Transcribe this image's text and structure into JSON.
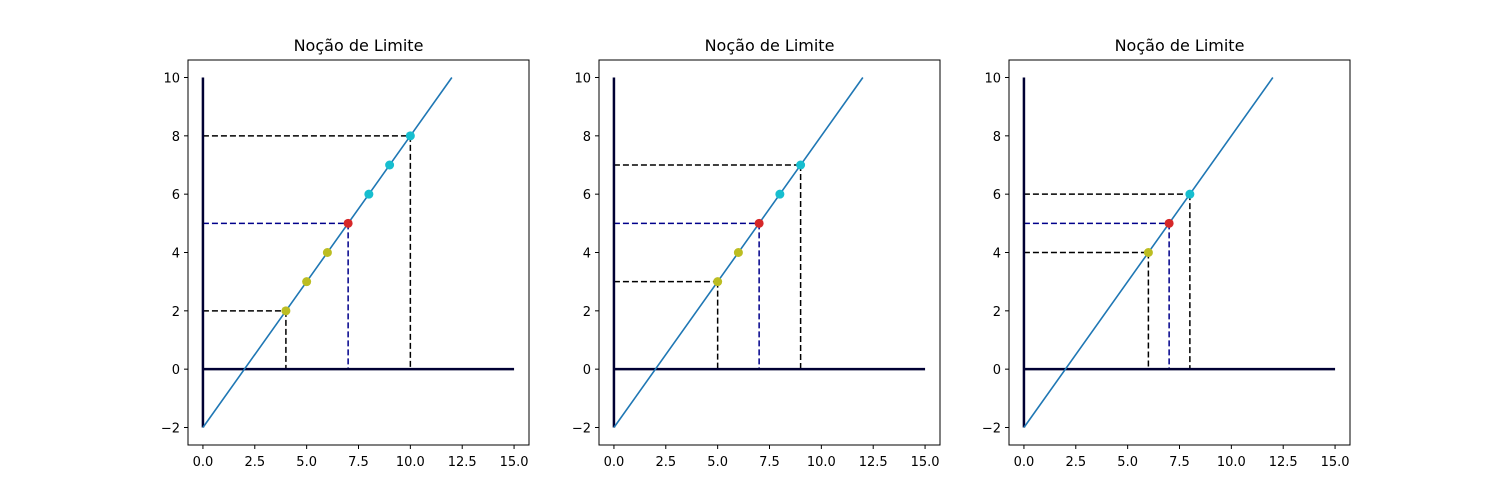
{
  "chart_data": [
    {
      "type": "line",
      "title": "Noção de Limite",
      "xlim": [
        -0.72,
        15.72
      ],
      "ylim": [
        -2.6,
        10.6
      ],
      "xticks": [
        0.0,
        2.5,
        5.0,
        7.5,
        10.0,
        12.5,
        15.0
      ],
      "xtick_labels": [
        "0.0",
        "2.5",
        "5.0",
        "7.5",
        "10.0",
        "12.5",
        "15.0"
      ],
      "yticks": [
        -2,
        0,
        2,
        4,
        6,
        8,
        10
      ],
      "ytick_labels": [
        "−2",
        "0",
        "2",
        "4",
        "6",
        "8",
        "10"
      ],
      "grid": false,
      "axes": {
        "x_axis": {
          "x": [
            0,
            15
          ],
          "y": 0
        },
        "y_axis": {
          "x": 0,
          "y": [
            -2,
            10
          ]
        }
      },
      "function_line": {
        "x": [
          0,
          12
        ],
        "y": [
          -2,
          10
        ],
        "color": "#1f77b4"
      },
      "limit_point": {
        "x": 7,
        "y": 5,
        "color": "#d62728"
      },
      "left_points": {
        "x": [
          4,
          5,
          6
        ],
        "y": [
          2,
          3,
          4
        ],
        "color": "#bcbd22"
      },
      "right_points": {
        "x": [
          8,
          9,
          10
        ],
        "y": [
          6,
          7,
          8
        ],
        "color": "#17becf"
      },
      "limit_guides": {
        "x": 7,
        "y": 5,
        "color": "#00008b"
      },
      "delta_guides": [
        {
          "x": 4,
          "y": 2
        },
        {
          "x": 10,
          "y": 8
        }
      ],
      "guide_color": "#000000"
    },
    {
      "type": "line",
      "title": "Noção de Limite",
      "xlim": [
        -0.72,
        15.72
      ],
      "ylim": [
        -2.6,
        10.6
      ],
      "xticks": [
        0.0,
        2.5,
        5.0,
        7.5,
        10.0,
        12.5,
        15.0
      ],
      "xtick_labels": [
        "0.0",
        "2.5",
        "5.0",
        "7.5",
        "10.0",
        "12.5",
        "15.0"
      ],
      "yticks": [
        -2,
        0,
        2,
        4,
        6,
        8,
        10
      ],
      "ytick_labels": [
        "−2",
        "0",
        "2",
        "4",
        "6",
        "8",
        "10"
      ],
      "grid": false,
      "axes": {
        "x_axis": {
          "x": [
            0,
            15
          ],
          "y": 0
        },
        "y_axis": {
          "x": 0,
          "y": [
            -2,
            10
          ]
        }
      },
      "function_line": {
        "x": [
          0,
          12
        ],
        "y": [
          -2,
          10
        ],
        "color": "#1f77b4"
      },
      "limit_point": {
        "x": 7,
        "y": 5,
        "color": "#d62728"
      },
      "left_points": {
        "x": [
          5,
          6
        ],
        "y": [
          3,
          4
        ],
        "color": "#bcbd22"
      },
      "right_points": {
        "x": [
          8,
          9
        ],
        "y": [
          6,
          7
        ],
        "color": "#17becf"
      },
      "limit_guides": {
        "x": 7,
        "y": 5,
        "color": "#00008b"
      },
      "delta_guides": [
        {
          "x": 5,
          "y": 3
        },
        {
          "x": 9,
          "y": 7
        }
      ],
      "guide_color": "#000000"
    },
    {
      "type": "line",
      "title": "Noção de Limite",
      "xlim": [
        -0.72,
        15.72
      ],
      "ylim": [
        -2.6,
        10.6
      ],
      "xticks": [
        0.0,
        2.5,
        5.0,
        7.5,
        10.0,
        12.5,
        15.0
      ],
      "xtick_labels": [
        "0.0",
        "2.5",
        "5.0",
        "7.5",
        "10.0",
        "12.5",
        "15.0"
      ],
      "yticks": [
        -2,
        0,
        2,
        4,
        6,
        8,
        10
      ],
      "ytick_labels": [
        "−2",
        "0",
        "2",
        "4",
        "6",
        "8",
        "10"
      ],
      "grid": false,
      "axes": {
        "x_axis": {
          "x": [
            0,
            15
          ],
          "y": 0
        },
        "y_axis": {
          "x": 0,
          "y": [
            -2,
            10
          ]
        }
      },
      "function_line": {
        "x": [
          0,
          12
        ],
        "y": [
          -2,
          10
        ],
        "color": "#1f77b4"
      },
      "limit_point": {
        "x": 7,
        "y": 5,
        "color": "#d62728"
      },
      "left_points": {
        "x": [
          6
        ],
        "y": [
          4
        ],
        "color": "#bcbd22"
      },
      "right_points": {
        "x": [
          8
        ],
        "y": [
          6
        ],
        "color": "#17becf"
      },
      "limit_guides": {
        "x": 7,
        "y": 5,
        "color": "#00008b"
      },
      "delta_guides": [
        {
          "x": 6,
          "y": 4
        },
        {
          "x": 8,
          "y": 6
        }
      ],
      "guide_color": "#000000"
    }
  ]
}
